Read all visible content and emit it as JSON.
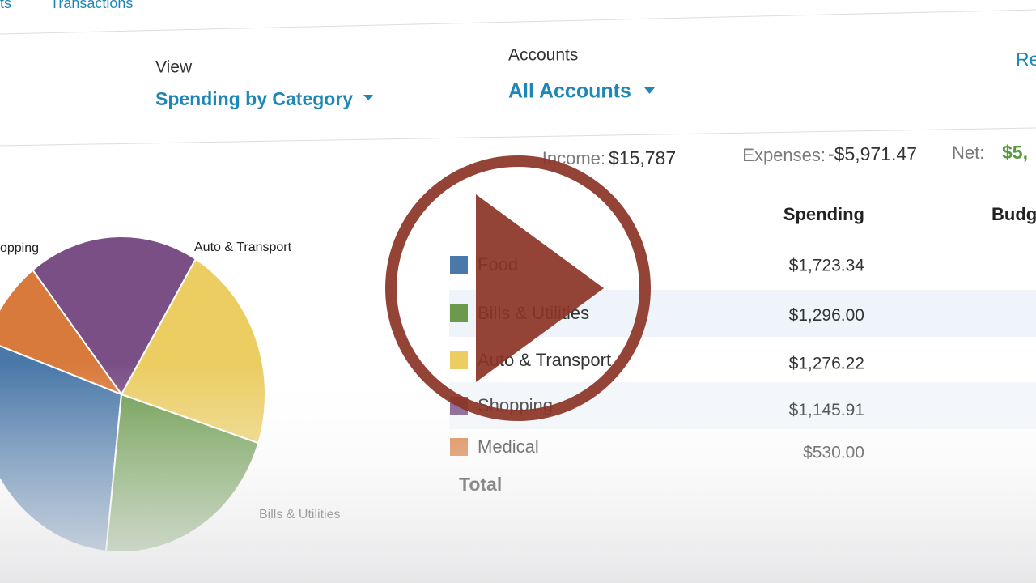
{
  "nav": {
    "items": [
      "ts",
      "Transactions"
    ]
  },
  "filters": {
    "view_label": "View",
    "view_value": "Spending by Category",
    "accounts_label": "Accounts",
    "accounts_value": "All Accounts",
    "right_link": "Re"
  },
  "summary": {
    "income_label": "Income:",
    "income_value": "$15,787",
    "expenses_label": "Expenses:",
    "expenses_value": "-$5,971.47",
    "net_label": "Net:",
    "net_value": "$5,"
  },
  "table": {
    "columns": [
      "Spending",
      "Budg"
    ],
    "total_label": "Total"
  },
  "chart_data": {
    "type": "pie",
    "categories": [
      "Food",
      "Bills & Utilities",
      "Auto & Transport",
      "Shopping",
      "Medical"
    ],
    "values": [
      1723.34,
      1296.0,
      1276.22,
      1145.91,
      530.0
    ],
    "value_labels": [
      "$1,723.34",
      "$1,296.00",
      "$1,276.22",
      "$1,145.91",
      "$530.00"
    ],
    "colors": [
      "#4a78a8",
      "#6b9a4e",
      "#ebcd62",
      "#7a4f86",
      "#d87a3c"
    ]
  }
}
